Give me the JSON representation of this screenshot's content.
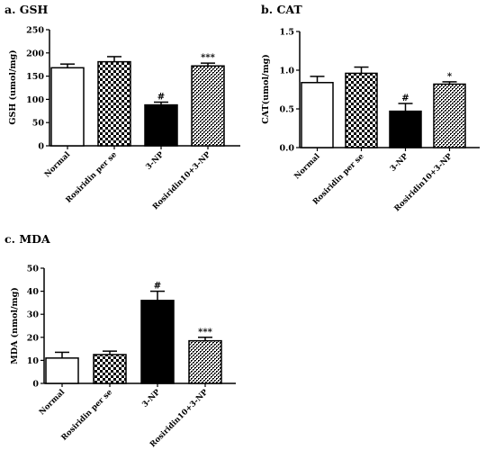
{
  "chart_data": [
    {
      "id": "gsh",
      "type": "bar",
      "title": "a. GSH",
      "ylabel": "GSH (umol/mg)",
      "ylim": [
        0,
        250
      ],
      "yticks": [
        "0",
        "50",
        "100",
        "150",
        "200",
        "250"
      ],
      "categories": [
        "Normal",
        "Rosiridin per se",
        "3-NP",
        "Rosiridin10+3-NP"
      ],
      "values": [
        168,
        181,
        88,
        172
      ],
      "errors": [
        8,
        11,
        6,
        6
      ],
      "annotations": [
        "",
        "",
        "#",
        "***"
      ]
    },
    {
      "id": "cat",
      "type": "bar",
      "title": "b. CAT",
      "ylabel": "CAT(umol/mg)",
      "ylim": [
        0,
        1.5
      ],
      "yticks": [
        "0.0",
        "0.5",
        "1.0",
        "1.5"
      ],
      "categories": [
        "Normal",
        "Rosiridin per se",
        "3-NP",
        "Rosiridin10+3-NP"
      ],
      "values": [
        0.84,
        0.96,
        0.47,
        0.82
      ],
      "errors": [
        0.08,
        0.08,
        0.1,
        0.03
      ],
      "annotations": [
        "",
        "",
        "#",
        "*"
      ]
    },
    {
      "id": "mda",
      "type": "bar",
      "title": "c. MDA",
      "ylabel": "MDA (nmol/mg)",
      "ylim": [
        0,
        50
      ],
      "yticks": [
        "0",
        "10",
        "20",
        "30",
        "40",
        "50"
      ],
      "categories": [
        "Normal",
        "Rosiridin per se",
        "3-NP",
        "Rosiridin10+3-NP"
      ],
      "values": [
        11,
        12.5,
        36,
        18.5
      ],
      "errors": [
        2.5,
        1.5,
        4,
        1.5
      ],
      "annotations": [
        "",
        "",
        "#",
        "***"
      ]
    }
  ]
}
